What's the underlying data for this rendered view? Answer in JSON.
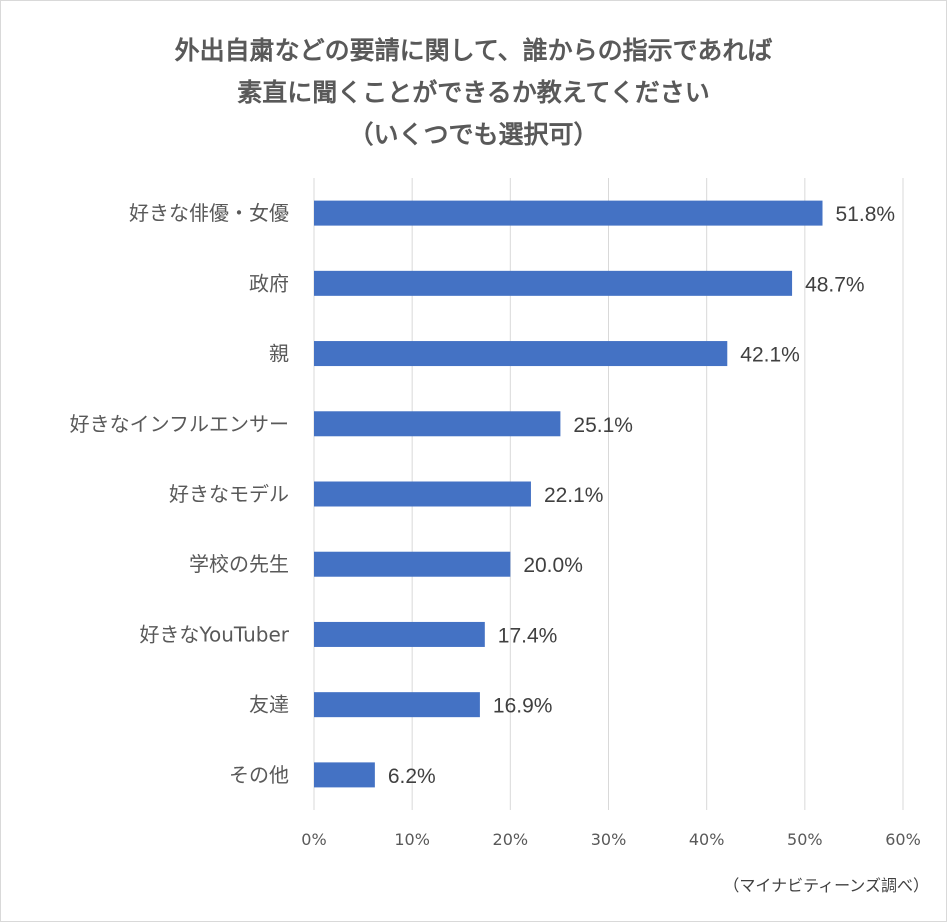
{
  "chart_data": {
    "type": "bar",
    "orientation": "horizontal",
    "title_lines": [
      "外出自粛などの要請に関して、誰からの指示であれば",
      "素直に聞くことができるか教えてください",
      "（いくつでも選択可）"
    ],
    "categories": [
      "好きな俳優・女優",
      "政府",
      "親",
      "好きなインフルエンサー",
      "好きなモデル",
      "学校の先生",
      "好きなYouTuber",
      "友達",
      "その他"
    ],
    "values": [
      51.8,
      48.7,
      42.1,
      25.1,
      22.1,
      20.0,
      17.4,
      16.9,
      6.2
    ],
    "value_labels": [
      "51.8%",
      "48.7%",
      "42.1%",
      "25.1%",
      "22.1%",
      "20.0%",
      "17.4%",
      "16.9%",
      "6.2%"
    ],
    "x_ticks": [
      "0%",
      "10%",
      "20%",
      "30%",
      "40%",
      "50%",
      "60%"
    ],
    "xlim": [
      0,
      60
    ],
    "grid": "vertical",
    "bar_color": "#4472c4",
    "source_note": "（マイナビティーンズ調べ）"
  }
}
